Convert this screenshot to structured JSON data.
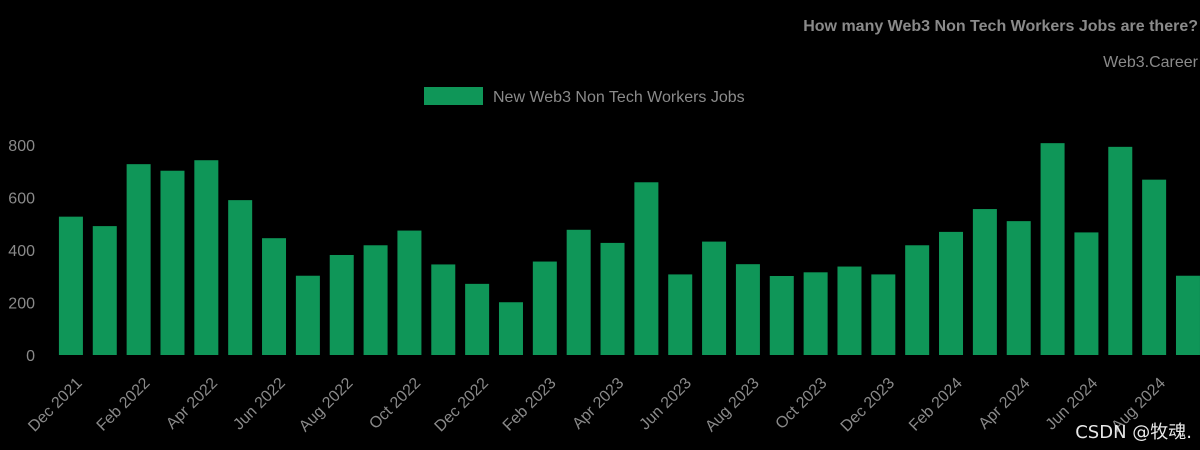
{
  "colors": {
    "bar": "#0f9658",
    "text": "#8a8a8a",
    "watermark": "#e8e8e8",
    "background": "#000000"
  },
  "watermark": "CSDN @牧魂.",
  "chart_data": {
    "type": "bar",
    "title": "How many Web3 Non Tech Workers Jobs are there?",
    "subtitle": "Web3.Career",
    "legend_position": "top-center",
    "xlabel": "",
    "ylabel": "",
    "ylim": [
      0,
      850
    ],
    "y_ticks": [
      "0",
      "200",
      "400",
      "600",
      "800"
    ],
    "y_tick_values": [
      0,
      200,
      400,
      600,
      800
    ],
    "categories": [
      "Dec 2021",
      "Jan 2022",
      "Feb 2022",
      "Mar 2022",
      "Apr 2022",
      "May 2022",
      "Jun 2022",
      "Jul 2022",
      "Aug 2022",
      "Sep 2022",
      "Oct 2022",
      "Nov 2022",
      "Dec 2022",
      "Jan 2023",
      "Feb 2023",
      "Mar 2023",
      "Apr 2023",
      "May 2023",
      "Jun 2023",
      "Jul 2023",
      "Aug 2023",
      "Sep 2023",
      "Oct 2023",
      "Nov 2023",
      "Dec 2023",
      "Jan 2024",
      "Feb 2024",
      "Mar 2024",
      "Apr 2024",
      "May 2024",
      "Jun 2024",
      "Jul 2024",
      "Aug 2024",
      "Sep 2024"
    ],
    "x_tick_labels": [
      "Dec 2021",
      "Feb 2022",
      "Apr 2022",
      "Jun 2022",
      "Aug 2022",
      "Oct 2022",
      "Dec 2022",
      "Feb 2023",
      "Apr 2023",
      "Jun 2023",
      "Aug 2023",
      "Oct 2023",
      "Dec 2023",
      "Feb 2024",
      "Apr 2024",
      "Jun 2024",
      "Aug 2024"
    ],
    "series": [
      {
        "name": "New Web3 Non Tech Workers Jobs",
        "values": [
          527,
          491,
          727,
          702,
          742,
          590,
          445,
          302,
          381,
          418,
          474,
          345,
          271,
          201,
          356,
          477,
          427,
          658,
          307,
          432,
          346,
          301,
          315,
          337,
          307,
          418,
          469,
          556,
          510,
          807,
          467,
          793,
          668,
          302
        ]
      }
    ]
  }
}
